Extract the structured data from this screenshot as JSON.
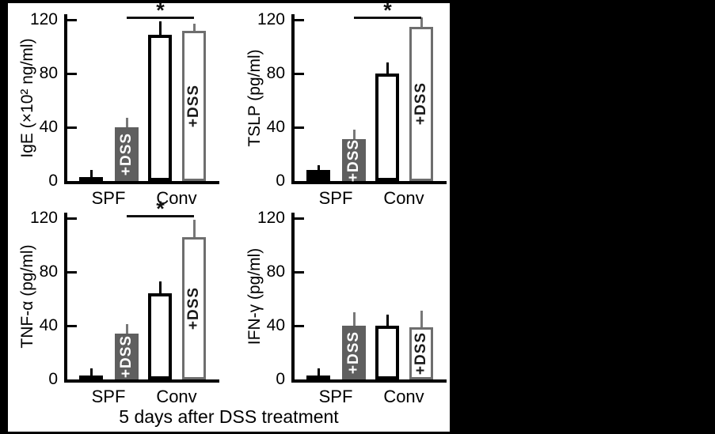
{
  "figure": {
    "caption": "5 days after DSS treatment",
    "significance_symbol": "*",
    "dss_label": "+DSS"
  },
  "colors": {
    "background": "#000000",
    "panel": "#ffffff",
    "black": "#000000",
    "gray_fill": "#5f5f5f",
    "gray_border": "#6e6e6e",
    "gray_whisker": "#787878",
    "dss_text_on_gray": "#ffffff",
    "dss_text_on_white": "#1a1a1a"
  },
  "bar_styles": [
    "solid-black",
    "solid-gray",
    "open-black",
    "open-gray"
  ],
  "dss_flags": [
    false,
    true,
    false,
    true
  ],
  "chart_data": [
    {
      "type": "bar",
      "ylabel": "IgE (×10² ng/ml)",
      "xlabel": "",
      "ylim": [
        0,
        120
      ],
      "yticks": [
        0,
        40,
        80,
        120
      ],
      "grid": false,
      "legend": false,
      "groups": [
        "SPF",
        "Conv"
      ],
      "categories": [
        "SPF",
        "SPF +DSS",
        "Conv",
        "Conv +DSS"
      ],
      "values": [
        3,
        40,
        109,
        112
      ],
      "errors": [
        5,
        7,
        10,
        5
      ],
      "significance": true,
      "significance_between": [
        "SPF +DSS",
        "Conv +DSS"
      ]
    },
    {
      "type": "bar",
      "ylabel": "TSLP (pg/ml)",
      "xlabel": "",
      "ylim": [
        0,
        120
      ],
      "yticks": [
        0,
        40,
        80,
        120
      ],
      "grid": false,
      "legend": false,
      "groups": [
        "SPF",
        "Conv"
      ],
      "categories": [
        "SPF",
        "SPF +DSS",
        "Conv",
        "Conv +DSS"
      ],
      "values": [
        8,
        31,
        80,
        115
      ],
      "errors": [
        4,
        7,
        8,
        7
      ],
      "significance": true,
      "significance_between": [
        "SPF +DSS",
        "Conv +DSS"
      ]
    },
    {
      "type": "bar",
      "ylabel": "TNF-α (pg/ml)",
      "xlabel": "",
      "ylim": [
        0,
        120
      ],
      "yticks": [
        0,
        40,
        80,
        120
      ],
      "grid": false,
      "legend": false,
      "groups": [
        "SPF",
        "Conv"
      ],
      "categories": [
        "SPF",
        "SPF +DSS",
        "Conv",
        "Conv +DSS"
      ],
      "values": [
        3,
        34,
        64,
        106
      ],
      "errors": [
        5,
        7,
        9,
        13
      ],
      "significance": true,
      "significance_between": [
        "SPF +DSS",
        "Conv +DSS"
      ]
    },
    {
      "type": "bar",
      "ylabel": "IFN-γ (pg/ml)",
      "xlabel": "",
      "ylim": [
        0,
        120
      ],
      "yticks": [
        0,
        40,
        80,
        120
      ],
      "grid": false,
      "legend": false,
      "groups": [
        "SPF",
        "Conv"
      ],
      "categories": [
        "SPF",
        "SPF +DSS",
        "Conv",
        "Conv +DSS"
      ],
      "values": [
        3,
        40,
        40,
        39
      ],
      "errors": [
        5,
        10,
        8,
        12
      ],
      "significance": false,
      "significance_between": []
    }
  ]
}
